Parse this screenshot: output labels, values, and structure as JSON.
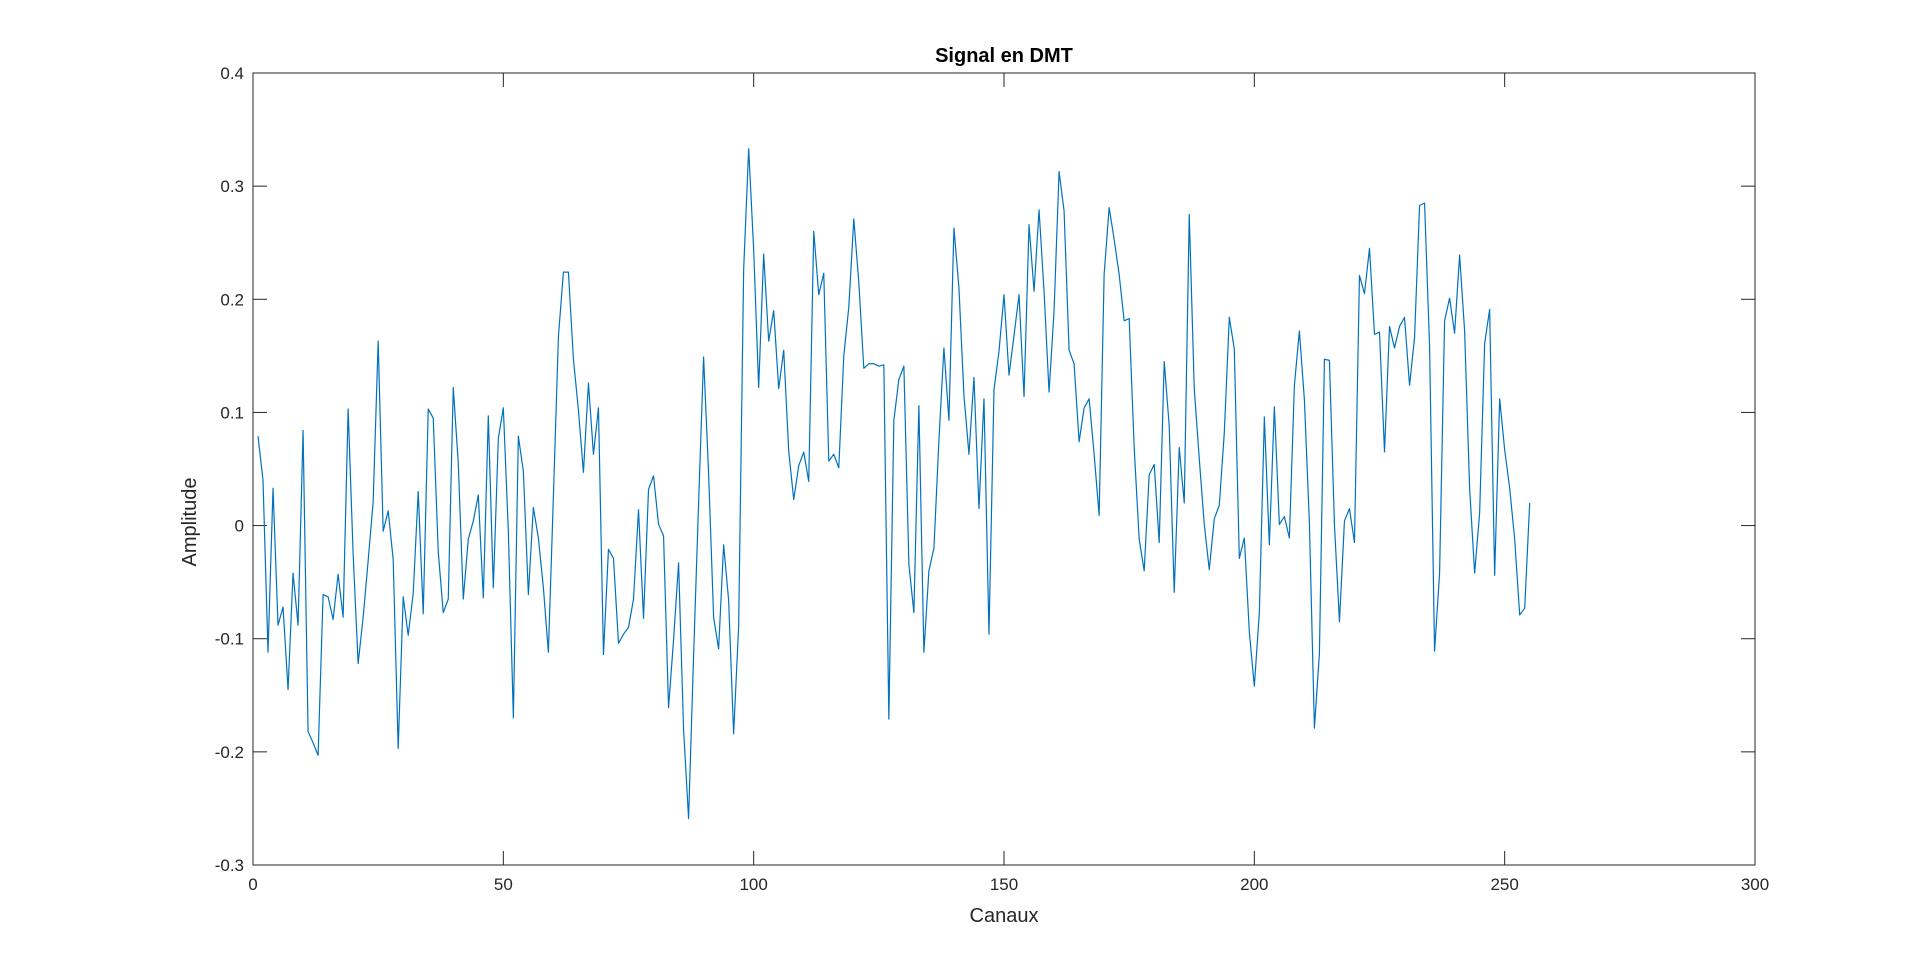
{
  "chart_data": {
    "type": "line",
    "title": "Signal en DMT",
    "xlabel": "Canaux",
    "ylabel": "Amplitude",
    "xlim": [
      0,
      300
    ],
    "ylim": [
      -0.3,
      0.4
    ],
    "xticks": [
      0,
      50,
      100,
      150,
      200,
      250,
      300
    ],
    "xtick_labels": [
      "0",
      "50",
      "100",
      "150",
      "200",
      "250",
      "300"
    ],
    "yticks": [
      -0.3,
      -0.2,
      -0.1,
      0,
      0.1,
      0.2,
      0.3,
      0.4
    ],
    "ytick_labels": [
      "-0.3",
      "-0.2",
      "-0.1",
      "0",
      "0.1",
      "0.2",
      "0.3",
      "0.4"
    ],
    "grid": false,
    "line_color": "#0072BD",
    "series": [
      {
        "x": [
          1,
          2,
          3,
          4,
          5,
          6,
          7,
          8,
          9,
          10,
          11,
          12,
          13,
          14,
          15,
          16,
          17,
          18,
          19,
          20,
          21,
          22,
          23,
          24,
          25,
          26,
          27,
          28,
          29,
          30,
          31,
          32,
          33,
          34,
          35,
          36,
          37,
          38,
          39,
          40,
          41,
          42,
          43,
          44,
          45,
          46,
          47,
          48,
          49,
          50,
          51,
          52,
          53,
          54,
          55,
          56,
          57,
          58,
          59,
          60,
          61,
          62,
          63,
          64,
          65,
          66,
          67,
          68,
          69,
          70,
          71,
          72,
          73,
          74,
          75,
          76,
          77,
          78,
          79,
          80,
          81,
          82,
          83,
          84,
          85,
          86,
          87,
          88,
          89,
          90,
          91,
          92,
          93,
          94,
          95,
          96,
          97,
          98,
          99,
          100,
          101,
          102,
          103,
          104,
          105,
          106,
          107,
          108,
          109,
          110,
          111,
          112,
          113,
          114,
          115,
          116,
          117,
          118,
          119,
          120,
          121,
          122,
          123,
          124,
          125,
          126,
          127,
          128,
          129,
          130,
          131,
          132,
          133,
          134,
          135,
          136,
          137,
          138,
          139,
          140,
          141,
          142,
          143,
          144,
          145,
          146,
          147,
          148,
          149,
          150,
          151,
          152,
          153,
          154,
          155,
          156,
          157,
          158,
          159,
          160,
          161,
          162,
          163,
          164,
          165,
          166,
          167,
          168,
          169,
          170,
          171,
          172,
          173,
          174,
          175,
          176,
          177,
          178,
          179,
          180,
          181,
          182,
          183,
          184,
          185,
          186,
          187,
          188,
          189,
          190,
          191,
          192,
          193,
          194,
          195,
          196,
          197,
          198,
          199,
          200,
          201,
          202,
          203,
          204,
          205,
          206,
          207,
          208,
          209,
          210,
          211,
          212,
          213,
          214,
          215,
          216,
          217,
          218,
          219,
          220,
          221,
          222,
          223,
          224,
          225,
          226,
          227,
          228,
          229,
          230,
          231,
          232,
          233,
          234,
          235,
          236,
          237,
          238,
          239,
          240,
          241,
          242,
          243,
          244,
          245,
          246,
          247,
          248,
          249,
          250,
          251,
          252,
          253,
          254,
          255
        ],
        "values": [
          0.079,
          0.04,
          -0.112,
          0.033,
          -0.088,
          -0.072,
          -0.145,
          -0.042,
          -0.088,
          0.084,
          -0.182,
          -0.192,
          -0.203,
          -0.061,
          -0.063,
          -0.083,
          -0.043,
          -0.081,
          0.103,
          -0.025,
          -0.122,
          -0.081,
          -0.031,
          0.021,
          0.163,
          -0.005,
          0.013,
          -0.03,
          -0.197,
          -0.063,
          -0.097,
          -0.06,
          0.03,
          -0.078,
          0.103,
          0.095,
          -0.023,
          -0.077,
          -0.065,
          0.122,
          0.055,
          -0.065,
          -0.012,
          0.004,
          0.027,
          -0.064,
          0.097,
          -0.055,
          0.077,
          0.104,
          -0.005,
          -0.17,
          0.079,
          0.048,
          -0.061,
          0.016,
          -0.011,
          -0.055,
          -0.112,
          0.026,
          0.167,
          0.224,
          0.224,
          0.147,
          0.102,
          0.047,
          0.126,
          0.063,
          0.104,
          -0.114,
          -0.021,
          -0.029,
          -0.104,
          -0.096,
          -0.09,
          -0.065,
          0.014,
          -0.082,
          0.032,
          0.044,
          0.001,
          -0.009,
          -0.161,
          -0.101,
          -0.033,
          -0.18,
          -0.259,
          -0.115,
          0.02,
          0.149,
          0.046,
          -0.081,
          -0.109,
          -0.017,
          -0.066,
          -0.184,
          -0.089,
          0.226,
          0.333,
          0.244,
          0.122,
          0.24,
          0.163,
          0.19,
          0.121,
          0.155,
          0.066,
          0.023,
          0.053,
          0.065,
          0.039,
          0.26,
          0.204,
          0.223,
          0.057,
          0.063,
          0.051,
          0.15,
          0.193,
          0.271,
          0.215,
          0.139,
          0.143,
          0.143,
          0.141,
          0.142,
          -0.171,
          0.093,
          0.129,
          0.141,
          -0.034,
          -0.077,
          0.106,
          -0.112,
          -0.04,
          -0.02,
          0.075,
          0.157,
          0.093,
          0.263,
          0.21,
          0.115,
          0.063,
          0.131,
          0.015,
          0.112,
          -0.096,
          0.12,
          0.154,
          0.204,
          0.133,
          0.168,
          0.204,
          0.114,
          0.266,
          0.207,
          0.279,
          0.207,
          0.118,
          0.19,
          0.313,
          0.278,
          0.155,
          0.143,
          0.074,
          0.104,
          0.112,
          0.063,
          0.009,
          0.222,
          0.281,
          0.253,
          0.222,
          0.181,
          0.183,
          0.069,
          -0.012,
          -0.04,
          0.045,
          0.054,
          -0.015,
          0.145,
          0.088,
          -0.059,
          0.069,
          0.02,
          0.275,
          0.121,
          0.059,
          0.001,
          -0.039,
          0.006,
          0.018,
          0.082,
          0.184,
          0.156,
          -0.029,
          -0.011,
          -0.094,
          -0.142,
          -0.077,
          0.096,
          -0.017,
          0.105,
          0.001,
          0.008,
          -0.011,
          0.124,
          0.172,
          0.111,
          0.002,
          -0.179,
          -0.113,
          0.147,
          0.146,
          0.001,
          -0.085,
          0.004,
          0.015,
          -0.015,
          0.221,
          0.205,
          0.245,
          0.169,
          0.171,
          0.065,
          0.176,
          0.157,
          0.176,
          0.184,
          0.124,
          0.166,
          0.283,
          0.285,
          0.159,
          -0.111,
          -0.042,
          0.181,
          0.201,
          0.17,
          0.239,
          0.172,
          0.033,
          -0.042,
          0.011,
          0.161,
          0.191,
          -0.044,
          0.112,
          0.067,
          0.033,
          -0.012,
          -0.079,
          -0.073,
          0.02
        ]
      }
    ]
  }
}
